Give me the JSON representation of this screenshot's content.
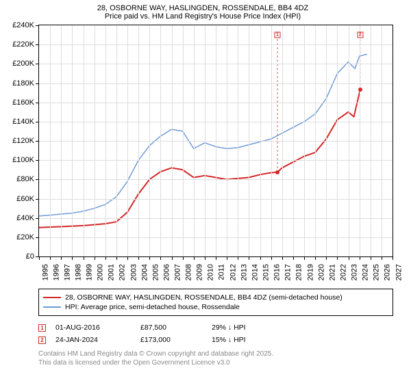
{
  "title_line1": "28, OSBORNE WAY, HASLINGDEN, ROSSENDALE, BB4 4DZ",
  "title_line2": "Price paid vs. HM Land Registry's House Price Index (HPI)",
  "yaxis": {
    "min": 0,
    "max": 240000,
    "ticks": [
      0,
      20000,
      40000,
      60000,
      80000,
      100000,
      120000,
      140000,
      160000,
      180000,
      200000,
      220000,
      240000
    ],
    "labels": [
      "£0",
      "£20K",
      "£40K",
      "£60K",
      "£80K",
      "£100K",
      "£120K",
      "£140K",
      "£160K",
      "£180K",
      "£200K",
      "£220K",
      "£240K"
    ],
    "label_fontsize": 11
  },
  "xaxis": {
    "min": 1995,
    "max": 2027,
    "ticks": [
      1995,
      1996,
      1997,
      1998,
      1999,
      2000,
      2001,
      2002,
      2003,
      2004,
      2005,
      2006,
      2007,
      2008,
      2009,
      2010,
      2011,
      2012,
      2013,
      2014,
      2015,
      2016,
      2017,
      2018,
      2019,
      2020,
      2021,
      2022,
      2023,
      2024,
      2025,
      2026,
      2027
    ],
    "label_fontsize": 11
  },
  "grid_color": "#dddddd",
  "series": {
    "price_paid": {
      "label": "28, OSBORNE WAY, HASLINGDEN, ROSSENDALE, BB4 4DZ (semi-detached house)",
      "color": "#d62728",
      "line_width": 2,
      "points": [
        [
          1995,
          30000
        ],
        [
          1996,
          30500
        ],
        [
          1997,
          31000
        ],
        [
          1998,
          31500
        ],
        [
          1999,
          32000
        ],
        [
          2000,
          33000
        ],
        [
          2001,
          34000
        ],
        [
          2002,
          36000
        ],
        [
          2003,
          46000
        ],
        [
          2004,
          65000
        ],
        [
          2005,
          80000
        ],
        [
          2006,
          88000
        ],
        [
          2007,
          92000
        ],
        [
          2008,
          90000
        ],
        [
          2009,
          82000
        ],
        [
          2010,
          84000
        ],
        [
          2011,
          82000
        ],
        [
          2012,
          80000
        ],
        [
          2013,
          81000
        ],
        [
          2014,
          82000
        ],
        [
          2015,
          85000
        ],
        [
          2016,
          87000
        ],
        [
          2016.58,
          87500
        ],
        [
          2017,
          92000
        ],
        [
          2018,
          98000
        ],
        [
          2019,
          104000
        ],
        [
          2020,
          108000
        ],
        [
          2021,
          122000
        ],
        [
          2022,
          142000
        ],
        [
          2023,
          150000
        ],
        [
          2023.5,
          145000
        ],
        [
          2024.07,
          173000
        ]
      ]
    },
    "hpi": {
      "label": "HPI: Average price, semi-detached house, Rossendale",
      "color": "#6f9bd8",
      "line_width": 1.5,
      "points": [
        [
          1995,
          42000
        ],
        [
          1996,
          43000
        ],
        [
          1997,
          44000
        ],
        [
          1998,
          45000
        ],
        [
          1999,
          47000
        ],
        [
          2000,
          50000
        ],
        [
          2001,
          54000
        ],
        [
          2002,
          62000
        ],
        [
          2003,
          78000
        ],
        [
          2004,
          100000
        ],
        [
          2005,
          115000
        ],
        [
          2006,
          125000
        ],
        [
          2007,
          132000
        ],
        [
          2008,
          130000
        ],
        [
          2009,
          112000
        ],
        [
          2010,
          118000
        ],
        [
          2011,
          114000
        ],
        [
          2012,
          112000
        ],
        [
          2013,
          113000
        ],
        [
          2014,
          116000
        ],
        [
          2015,
          119000
        ],
        [
          2016,
          122000
        ],
        [
          2017,
          128000
        ],
        [
          2018,
          134000
        ],
        [
          2019,
          140000
        ],
        [
          2020,
          148000
        ],
        [
          2021,
          164000
        ],
        [
          2022,
          190000
        ],
        [
          2023,
          202000
        ],
        [
          2023.6,
          195000
        ],
        [
          2024,
          208000
        ],
        [
          2024.7,
          210000
        ]
      ]
    }
  },
  "markers": [
    {
      "n": "1",
      "date": "01-AUG-2016",
      "x": 2016.58,
      "y": 87500,
      "price": "£87,500",
      "delta": "29% ↓ HPI",
      "marker_y": 230000
    },
    {
      "n": "2",
      "date": "24-JAN-2024",
      "x": 2024.07,
      "y": 173000,
      "price": "£173,000",
      "delta": "15% ↓ HPI",
      "marker_y": 230000
    }
  ],
  "credits_line1": "Contains HM Land Registry data © Crown copyright and database right 2025.",
  "credits_line2": "This data is licensed under the Open Government Licence v3.0"
}
